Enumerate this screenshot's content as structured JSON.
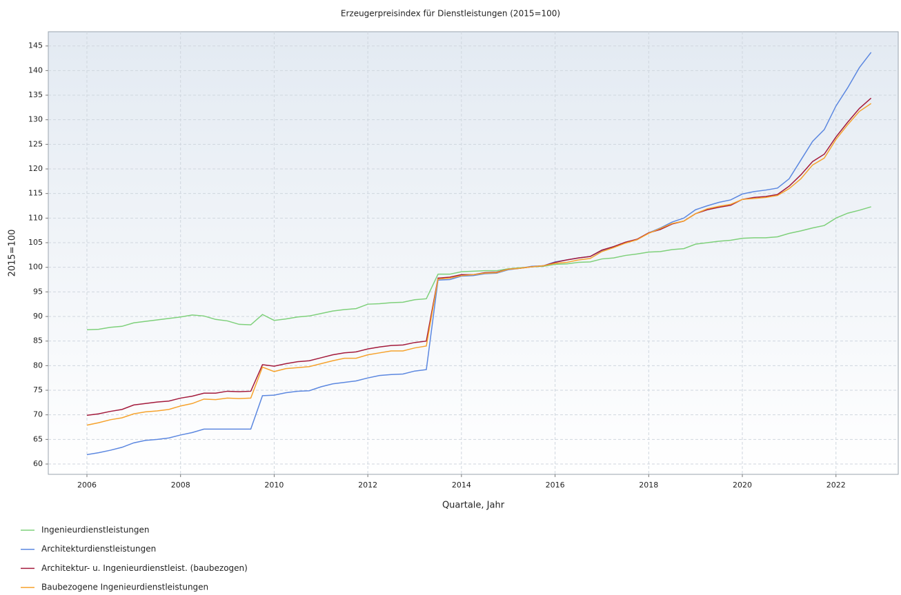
{
  "chart_data": {
    "type": "line",
    "title": "Erzeugerpreisindex für Dienstleistungen (2015=100)",
    "x_label": "Quartale, Jahr",
    "y_label": "2015=100",
    "x": [
      2006,
      2006.25,
      2006.5,
      2006.75,
      2007,
      2007.25,
      2007.5,
      2007.75,
      2008,
      2008.25,
      2008.5,
      2008.75,
      2009,
      2009.25,
      2009.5,
      2009.75,
      2010,
      2010.25,
      2010.5,
      2010.75,
      2011,
      2011.25,
      2011.5,
      2011.75,
      2012,
      2012.25,
      2012.5,
      2012.75,
      2013,
      2013.25,
      2013.5,
      2013.75,
      2014,
      2014.25,
      2014.5,
      2014.75,
      2015,
      2015.25,
      2015.5,
      2015.75,
      2016,
      2016.25,
      2016.5,
      2016.75,
      2017,
      2017.25,
      2017.5,
      2017.75,
      2018,
      2018.25,
      2018.5,
      2018.75,
      2019,
      2019.25,
      2019.5,
      2019.75,
      2020,
      2020.25,
      2020.5,
      2020.75,
      2021,
      2021.25,
      2021.5,
      2021.75,
      2022,
      2022.25,
      2022.5,
      2022.75
    ],
    "series": [
      {
        "name": "Ingenieurdienstleistungen",
        "color": "#7ed07a",
        "values": [
          87.3,
          87.4,
          87.8,
          88.0,
          88.7,
          89.0,
          89.3,
          89.6,
          89.9,
          90.3,
          90.1,
          89.4,
          89.1,
          88.4,
          88.3,
          90.4,
          89.2,
          89.5,
          89.9,
          90.1,
          90.6,
          91.1,
          91.4,
          91.6,
          92.5,
          92.6,
          92.8,
          92.9,
          93.4,
          93.6,
          98.6,
          98.6,
          99.1,
          99.2,
          99.3,
          99.3,
          99.7,
          99.9,
          100.1,
          100.2,
          100.6,
          100.7,
          101.0,
          101.1,
          101.7,
          101.9,
          102.4,
          102.7,
          103.1,
          103.2,
          103.6,
          103.8,
          104.7,
          105.0,
          105.3,
          105.5,
          105.9,
          106.0,
          106.0,
          106.2,
          106.9,
          107.4,
          108.0,
          108.5,
          110.0,
          111.0,
          111.6,
          112.3
        ]
      },
      {
        "name": "Architekturdienstleistungen",
        "color": "#5b87e0",
        "values": [
          61.9,
          62.3,
          62.8,
          63.4,
          64.3,
          64.8,
          65.0,
          65.3,
          65.9,
          66.4,
          67.1,
          67.1,
          67.1,
          67.1,
          67.1,
          73.9,
          74.0,
          74.5,
          74.8,
          74.9,
          75.7,
          76.3,
          76.6,
          76.9,
          77.5,
          78.0,
          78.2,
          78.3,
          78.9,
          79.2,
          97.4,
          97.5,
          98.2,
          98.3,
          98.7,
          98.8,
          99.5,
          99.8,
          100.2,
          100.3,
          101.1,
          101.5,
          101.9,
          102.2,
          103.4,
          104.2,
          105.0,
          105.6,
          107.0,
          108.0,
          109.2,
          110.0,
          111.7,
          112.5,
          113.2,
          113.7,
          114.9,
          115.4,
          115.7,
          116.1,
          118.0,
          121.8,
          125.6,
          128.0,
          132.8,
          136.5,
          140.6,
          143.7
        ]
      },
      {
        "name": "Architektur- u. Ingenieurdienstleist. (baubezogen)",
        "color": "#a3193b",
        "values": [
          69.9,
          70.2,
          70.7,
          71.1,
          72.0,
          72.3,
          72.6,
          72.8,
          73.4,
          73.8,
          74.4,
          74.4,
          74.8,
          74.7,
          74.8,
          80.2,
          79.9,
          80.4,
          80.8,
          81.0,
          81.6,
          82.2,
          82.6,
          82.8,
          83.4,
          83.8,
          84.1,
          84.2,
          84.7,
          85.0,
          97.8,
          98.0,
          98.5,
          98.5,
          98.9,
          99.0,
          99.6,
          99.8,
          100.1,
          100.3,
          101.0,
          101.5,
          101.9,
          102.2,
          103.5,
          104.2,
          105.1,
          105.7,
          107.0,
          107.7,
          108.8,
          109.4,
          110.9,
          111.7,
          112.2,
          112.6,
          113.8,
          114.2,
          114.4,
          114.8,
          116.5,
          118.8,
          121.5,
          123.0,
          126.5,
          129.5,
          132.3,
          134.4
        ]
      },
      {
        "name": "Baubezogene Ingenieurdienstleistungen",
        "color": "#f6a22c",
        "values": [
          67.9,
          68.4,
          69.0,
          69.4,
          70.2,
          70.6,
          70.8,
          71.1,
          71.8,
          72.3,
          73.2,
          73.1,
          73.4,
          73.3,
          73.4,
          79.7,
          78.8,
          79.4,
          79.6,
          79.8,
          80.4,
          81.0,
          81.5,
          81.5,
          82.2,
          82.6,
          83.0,
          83.0,
          83.6,
          84.0,
          97.6,
          97.8,
          98.3,
          98.5,
          98.8,
          98.9,
          99.6,
          99.8,
          100.1,
          100.3,
          100.8,
          101.0,
          101.5,
          101.8,
          103.2,
          104.0,
          104.9,
          105.6,
          106.9,
          107.9,
          108.9,
          109.4,
          110.9,
          111.9,
          112.4,
          112.8,
          113.8,
          114.0,
          114.2,
          114.6,
          116.0,
          118.0,
          120.8,
          122.2,
          126.0,
          129.0,
          131.7,
          133.3
        ]
      }
    ],
    "xlim": [
      2005.175,
      2023.33
    ],
    "xticks": [
      2006,
      2008,
      2010,
      2012,
      2014,
      2016,
      2018,
      2020,
      2022
    ],
    "ylim": [
      57.9,
      147.9
    ],
    "yticks": [
      60,
      65,
      70,
      75,
      80,
      85,
      90,
      95,
      100,
      105,
      110,
      115,
      120,
      125,
      130,
      135,
      140,
      145
    ],
    "grid": true,
    "legend": "bottom-left"
  }
}
